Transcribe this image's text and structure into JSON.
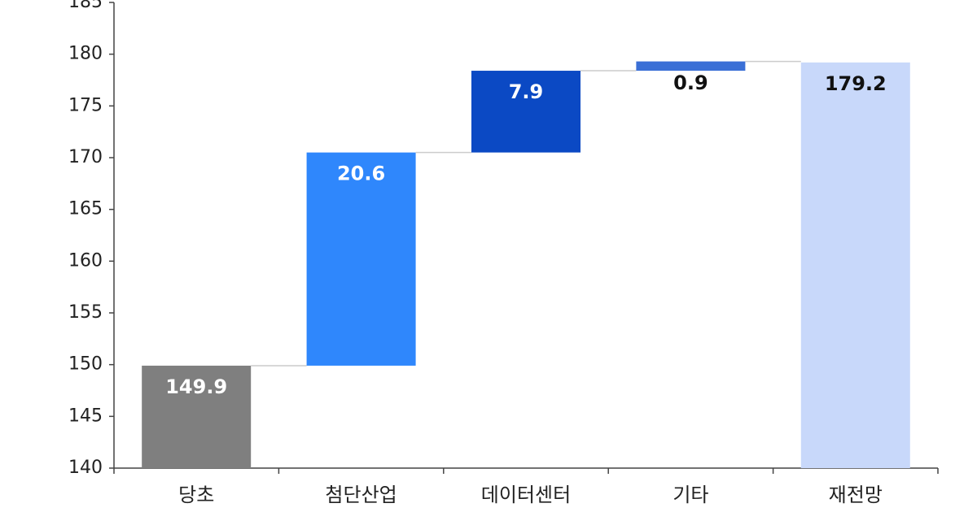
{
  "chart_data": {
    "type": "waterfall",
    "categories": [
      "당초",
      "첨단산업",
      "데이터센터",
      "기타",
      "재전망"
    ],
    "values": [
      149.9,
      20.6,
      7.9,
      0.9,
      179.2
    ],
    "colors": [
      "#7f7f7f",
      "#2f87fc",
      "#0b49c4",
      "#3a6fd6",
      "#c8d8fa"
    ],
    "ylim": [
      140,
      185
    ],
    "yticks": [
      140,
      145,
      150,
      155,
      160,
      165,
      170,
      175,
      180,
      185
    ]
  }
}
